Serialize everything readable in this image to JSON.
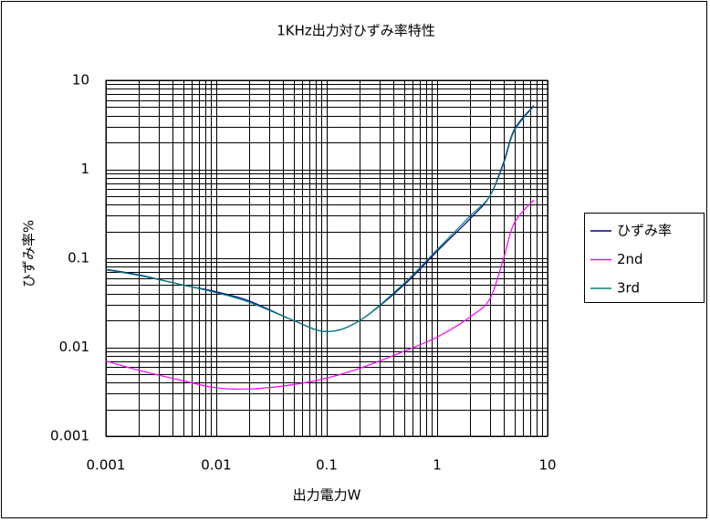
{
  "chart_data": {
    "type": "line",
    "title": "1KHz出力対ひずみ率特性",
    "x_label": "出力電力W",
    "y_label": "ひずみ率%",
    "x": [
      0.001,
      0.002,
      0.005,
      0.01,
      0.02,
      0.05,
      0.1,
      0.2,
      0.5,
      1,
      2,
      3,
      4,
      5,
      7.5
    ],
    "series": [
      {
        "name": "ひずみ率",
        "color": "#000080",
        "values": [
          0.075,
          0.065,
          0.05,
          0.042,
          0.033,
          0.02,
          0.015,
          0.02,
          0.05,
          0.12,
          0.28,
          0.5,
          1.2,
          2.8,
          5.2
        ]
      },
      {
        "name": "2nd",
        "color": "#ff00ff",
        "values": [
          0.007,
          0.0055,
          0.0042,
          0.0035,
          0.0034,
          0.0038,
          0.0045,
          0.0058,
          0.009,
          0.013,
          0.022,
          0.035,
          0.1,
          0.25,
          0.45
        ]
      },
      {
        "name": "3rd",
        "color": "#008080",
        "values": [
          0.074,
          0.064,
          0.05,
          0.041,
          0.032,
          0.02,
          0.015,
          0.02,
          0.052,
          0.125,
          0.3,
          0.5,
          1.15,
          2.7,
          5.1
        ]
      }
    ],
    "xlim": [
      0.001,
      10
    ],
    "xticks": [
      0.001,
      0.01,
      0.1,
      1,
      10
    ],
    "ylim": [
      0.001,
      10
    ],
    "yticks": [
      0.001,
      0.01,
      0.1,
      1,
      10
    ],
    "xscale": "log",
    "yscale": "log",
    "grid": true,
    "legend": "right"
  }
}
